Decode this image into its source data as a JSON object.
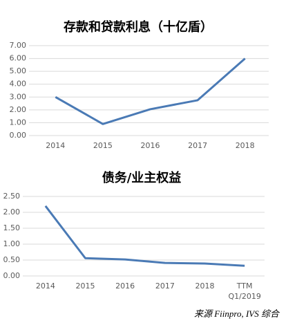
{
  "chart_data": [
    {
      "type": "line",
      "title": "存款和贷款利息（十亿盾）",
      "categories": [
        "2014",
        "2015",
        "2016",
        "2017",
        "2018"
      ],
      "values": [
        3.0,
        0.9,
        2.05,
        2.75,
        6.0
      ],
      "color": "#4a7ab5",
      "ylim": [
        0,
        7
      ],
      "yticks": [
        {
          "value": 0,
          "label": "0.00"
        },
        {
          "value": 1,
          "label": "1.00"
        },
        {
          "value": 2,
          "label": "2.00"
        },
        {
          "value": 3,
          "label": "3.00"
        },
        {
          "value": 4,
          "label": "4.00"
        },
        {
          "value": 5,
          "label": "5.00"
        },
        {
          "value": 6,
          "label": "6.00"
        },
        {
          "value": 7,
          "label": "7.00"
        }
      ],
      "grid": true
    },
    {
      "type": "line",
      "title": "债务/业主权益",
      "categories": [
        "2014",
        "2015",
        "2016",
        "2017",
        "2018",
        "TTM Q1/2019"
      ],
      "values": [
        2.2,
        0.56,
        0.52,
        0.41,
        0.39,
        0.32
      ],
      "color": "#4a7ab5",
      "ylim": [
        0,
        2.5
      ],
      "yticks": [
        {
          "value": 0,
          "label": "0.00"
        },
        {
          "value": 0.5,
          "label": "0.50"
        },
        {
          "value": 1,
          "label": "1.00"
        },
        {
          "value": 1.5,
          "label": "1.50"
        },
        {
          "value": 2,
          "label": "2.00"
        },
        {
          "value": 2.5,
          "label": "2.50"
        }
      ],
      "grid": true,
      "source": "来源 Fiinpro, IVS 综合"
    }
  ]
}
